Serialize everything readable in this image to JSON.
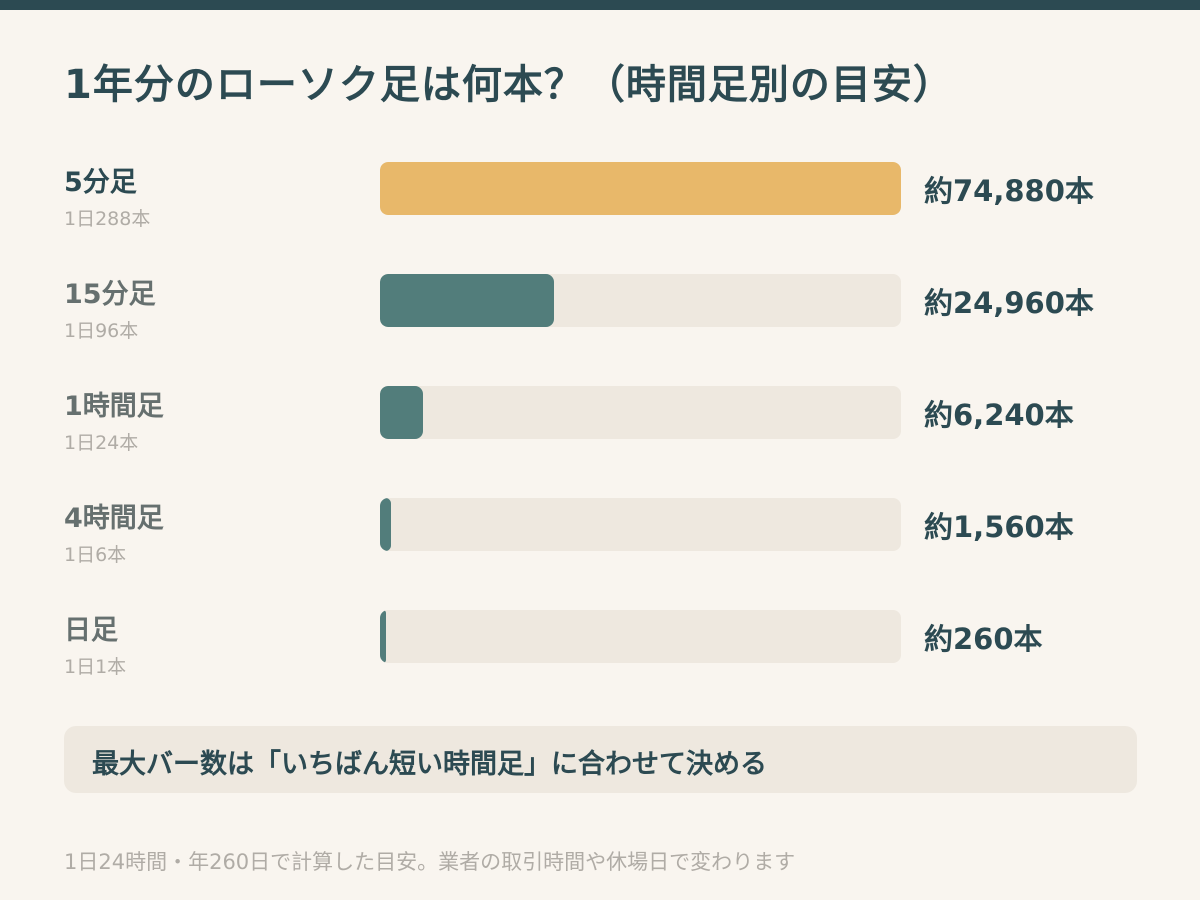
{
  "chart_data": {
    "type": "bar",
    "orientation": "horizontal",
    "title": "1年分のローソク足は何本？（時間足別の目安）",
    "categories": [
      "5分足",
      "15分足",
      "1時間足",
      "4時間足",
      "日足"
    ],
    "sublabels": [
      "1日288本",
      "1日96本",
      "1日24本",
      "1日6本",
      "1日1本"
    ],
    "values": [
      74880,
      24960,
      6240,
      1560,
      260
    ],
    "value_labels": [
      "約74,880本",
      "約24,960本",
      "約6,240本",
      "約1,560本",
      "約260本"
    ],
    "highlight_index": 0,
    "xlim": [
      0,
      74880
    ],
    "colors": {
      "highlight": "#e8b86a",
      "bar": "#527d7b",
      "track": "#eee8df"
    }
  },
  "note": "最大バー数は「いちばん短い時間足」に合わせて決める",
  "footnote": "1日24時間・年260日で計算した目安。業者の取引時間や休場日で変わります"
}
